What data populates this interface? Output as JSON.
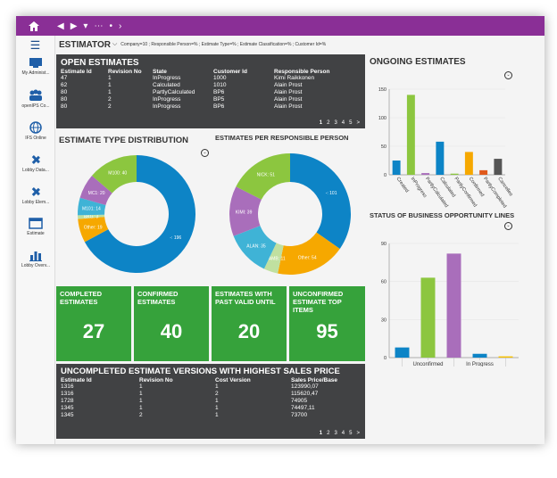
{
  "topbar": {
    "home_icon": "home-icon",
    "nav": [
      "◀",
      "▶",
      "▾",
      "⋯",
      "•",
      "›"
    ]
  },
  "sidebar": {
    "items": [
      {
        "label": "My Administ...",
        "icon": "monitor-icon"
      },
      {
        "label": "openIPS Co...",
        "icon": "people-icon"
      },
      {
        "label": "IFS Online",
        "icon": "globe-icon"
      },
      {
        "label": "Lobby Data...",
        "icon": "puzzle-icon"
      },
      {
        "label": "Lobby Elem...",
        "icon": "puzzle-icon"
      },
      {
        "label": "Estimate",
        "icon": "window-icon"
      },
      {
        "label": "Lobby Overv...",
        "icon": "barchart-icon"
      }
    ]
  },
  "header": {
    "title": "ESTIMATOR",
    "filters": "Company=10 ; Responsible Person=% ; Estimate Type=% ; Estimate Classification=% ; Customer Id=%"
  },
  "open_estimates": {
    "title": "OPEN ESTIMATES",
    "columns": [
      "Estimate Id",
      "Revision No",
      "State",
      "Customer Id",
      "Responsible Person"
    ],
    "rows": [
      [
        "47",
        "1",
        "InProgress",
        "1000",
        "Kimi Raikkonen"
      ],
      [
        "62",
        "1",
        "Calculated",
        "1010",
        "Alain Prost"
      ],
      [
        "80",
        "1",
        "PartlyCalculated",
        "BP6",
        "Alain Prost"
      ],
      [
        "80",
        "2",
        "InProgress",
        "BP5",
        "Alain Prost"
      ],
      [
        "80",
        "2",
        "InProgress",
        "BP6",
        "Alain Prost"
      ]
    ],
    "pager": [
      "1",
      "2",
      "3",
      "4",
      "5",
      ">"
    ]
  },
  "type_dist": {
    "title": "ESTIMATE TYPE DISTRIBUTION"
  },
  "per_person": {
    "title": "ESTIMATES PER RESPONSIBLE PERSON"
  },
  "ongoing": {
    "title": "ONGOING ESTIMATES"
  },
  "business": {
    "title": "STATUS OF BUSINESS OPPORTUNITY LINES"
  },
  "kpis": [
    {
      "title": "COMPLETED ESTIMATES",
      "value": "27"
    },
    {
      "title": "CONFIRMED ESTIMATES",
      "value": "40"
    },
    {
      "title": "ESTIMATES WITH PAST VALID UNTIL",
      "value": "20"
    },
    {
      "title": "UNCONFIRMED ESTIMATE TOP ITEMS",
      "value": "95"
    }
  ],
  "uncompleted": {
    "title": "UNCOMPLETED ESTIMATE VERSIONS WITH HIGHEST SALES PRICE",
    "columns": [
      "Estimate Id",
      "Revision No",
      "Cost Version",
      "Sales Price/Base"
    ],
    "rows": [
      [
        "1316",
        "1",
        "1",
        "123990,07"
      ],
      [
        "1316",
        "1",
        "2",
        "115620,47"
      ],
      [
        "1728",
        "1",
        "1",
        "74905"
      ],
      [
        "1345",
        "1",
        "1",
        "74497,11"
      ],
      [
        "1345",
        "2",
        "1",
        "73700"
      ]
    ],
    "pager": [
      "1",
      "2",
      "3",
      "4",
      "5",
      ">"
    ]
  },
  "chart_data": [
    {
      "type": "pie",
      "title": "ESTIMATE TYPE DISTRIBUTION",
      "donut": true,
      "labels": [
        "-",
        "Other",
        "BKG",
        "M101",
        "MC1",
        "M100"
      ],
      "values": [
        196,
        19,
        3,
        14,
        20,
        40
      ],
      "colors": [
        "#0d84c6",
        "#f6a800",
        "#c0e0a0",
        "#3fb3d6",
        "#a96ebb",
        "#8cc63f"
      ]
    },
    {
      "type": "pie",
      "title": "ESTIMATES PER RESPONSIBLE PERSON",
      "donut": true,
      "labels": [
        "-",
        "Other",
        "DAMB",
        "ALAN",
        "KIMI",
        "NICK"
      ],
      "values": [
        101,
        54,
        11,
        35,
        39,
        51
      ],
      "colors": [
        "#0d84c6",
        "#f6a800",
        "#c0e0a0",
        "#3fb3d6",
        "#a96ebb",
        "#8cc63f"
      ]
    },
    {
      "type": "bar",
      "title": "ONGOING ESTIMATES",
      "categories": [
        "Created",
        "InProgress",
        "PartlyCalculated",
        "Calculated",
        "PartlyConfirmed",
        "Confirmed",
        "PartlyCompleted",
        "Cancelled"
      ],
      "values": [
        25,
        140,
        3,
        58,
        2,
        40,
        8,
        28
      ],
      "colors": [
        "#0d84c6",
        "#8cc63f",
        "#a96ebb",
        "#0d84c6",
        "#8cc63f",
        "#f6a800",
        "#e05a1c",
        "#555555"
      ],
      "ylim": [
        0,
        150
      ],
      "yticks": [
        "0",
        "50",
        "100",
        "150"
      ]
    },
    {
      "type": "bar",
      "title": "STATUS OF BUSINESS OPPORTUNITY LINES",
      "categories": [
        "Cancelled",
        "Unconfirmed",
        "Confirmed",
        "In Progress",
        "Won"
      ],
      "values": [
        8,
        63,
        82,
        3,
        1
      ],
      "colors": [
        "#0d84c6",
        "#8cc63f",
        "#a96ebb",
        "#0d84c6",
        "#f6c000"
      ],
      "ylim": [
        0,
        90
      ],
      "yticks": [
        "0",
        "30",
        "60",
        "90"
      ]
    }
  ]
}
